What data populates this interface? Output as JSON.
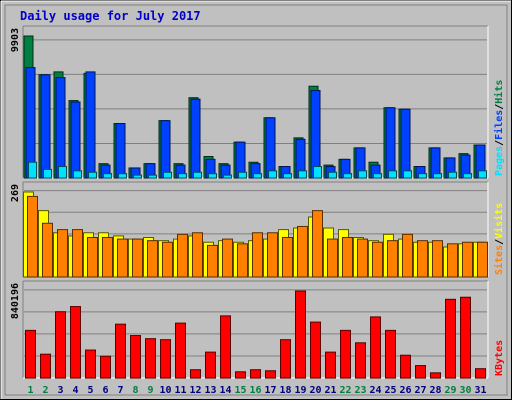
{
  "chart_data": {
    "type": "bar",
    "title": "Daily usage for July 2017",
    "categories": [
      "1",
      "2",
      "3",
      "4",
      "5",
      "6",
      "7",
      "8",
      "9",
      "10",
      "11",
      "12",
      "13",
      "14",
      "15",
      "16",
      "17",
      "18",
      "19",
      "20",
      "21",
      "22",
      "23",
      "24",
      "25",
      "26",
      "27",
      "28",
      "29",
      "30",
      "31"
    ],
    "weekend_days": [
      "1",
      "2",
      "8",
      "9",
      "15",
      "16",
      "22",
      "23",
      "29",
      "30"
    ],
    "colors": {
      "background": "#c0c0c0",
      "frame": "#ffffff",
      "title": "#0000cc",
      "hits": "#008040",
      "files": "#0040ff",
      "pages": "#00e0ff",
      "visits": "#ffff00",
      "sites": "#ff8000",
      "kbytes": "#ff0000",
      "weekday_label": "#000080",
      "weekend_label": "#008040",
      "separator": "#0080c0"
    },
    "panels": [
      {
        "id": "hits-panel",
        "max_label": "9903",
        "ymax": 9903,
        "legend": [
          {
            "text": "Pages",
            "color": "#00e0ff"
          },
          {
            "text": "/",
            "color": "#000000"
          },
          {
            "text": "Files",
            "color": "#0040ff"
          },
          {
            "text": "/",
            "color": "#000000"
          },
          {
            "text": "Hits",
            "color": "#008040"
          }
        ],
        "series": [
          {
            "name": "Hits",
            "color": "#008040",
            "values": [
              9903,
              7200,
              7400,
              5400,
              7300,
              1000,
              3800,
              700,
              1000,
              4000,
              1000,
              5600,
              1500,
              1000,
              2500,
              1100,
              4200,
              800,
              2800,
              6400,
              900,
              1300,
              2100,
              1100,
              4900,
              4800,
              800,
              2100,
              1400,
              1700,
              2300
            ]
          },
          {
            "name": "Files",
            "color": "#0040ff",
            "values": [
              7700,
              7200,
              7000,
              5300,
              7400,
              900,
              3800,
              700,
              1000,
              4000,
              900,
              5500,
              1300,
              900,
              2500,
              1000,
              4200,
              800,
              2700,
              6100,
              800,
              1300,
              2100,
              900,
              4900,
              4800,
              800,
              2100,
              1400,
              1600,
              2300
            ]
          },
          {
            "name": "Pages",
            "color": "#00e0ff",
            "values": [
              1100,
              600,
              800,
              500,
              400,
              300,
              300,
              200,
              200,
              400,
              300,
              400,
              300,
              200,
              400,
              300,
              500,
              300,
              500,
              800,
              400,
              300,
              500,
              300,
              500,
              500,
              300,
              300,
              400,
              300,
              500
            ]
          }
        ]
      },
      {
        "id": "visits-panel",
        "max_label": "269",
        "ymax": 269,
        "legend": [
          {
            "text": "Sites",
            "color": "#ff8000"
          },
          {
            "text": "/",
            "color": "#000000"
          },
          {
            "text": "Visits",
            "color": "#ffff00"
          }
        ],
        "series": [
          {
            "name": "Visits",
            "color": "#ffff00",
            "values": [
              269,
              210,
              140,
              130,
              140,
              140,
              130,
              120,
              125,
              115,
              120,
              130,
              110,
              115,
              110,
              115,
              120,
              150,
              155,
              190,
              155,
              150,
              125,
              115,
              135,
              120,
              110,
              110,
              95,
              105,
              110
            ]
          },
          {
            "name": "Sites",
            "color": "#ff8000",
            "values": [
              255,
              170,
              150,
              150,
              125,
              125,
              120,
              120,
              115,
              110,
              135,
              140,
              100,
              120,
              105,
              140,
              140,
              125,
              160,
              210,
              120,
              125,
              120,
              110,
              115,
              135,
              115,
              115,
              105,
              110,
              110
            ]
          }
        ]
      },
      {
        "id": "kbytes-panel",
        "max_label": "840196",
        "ymax": 840196,
        "legend": [
          {
            "text": "KBytes",
            "color": "#ff0000"
          }
        ],
        "series": [
          {
            "name": "KBytes",
            "color": "#ff0000",
            "values": [
              460000,
              230000,
              640000,
              690000,
              270000,
              210000,
              520000,
              410000,
              380000,
              370000,
              530000,
              80000,
              250000,
              600000,
              60000,
              80000,
              70000,
              370000,
              840196,
              540000,
              250000,
              460000,
              340000,
              590000,
              460000,
              220000,
              120000,
              50000,
              760000,
              780000,
              90000
            ]
          }
        ]
      }
    ]
  }
}
